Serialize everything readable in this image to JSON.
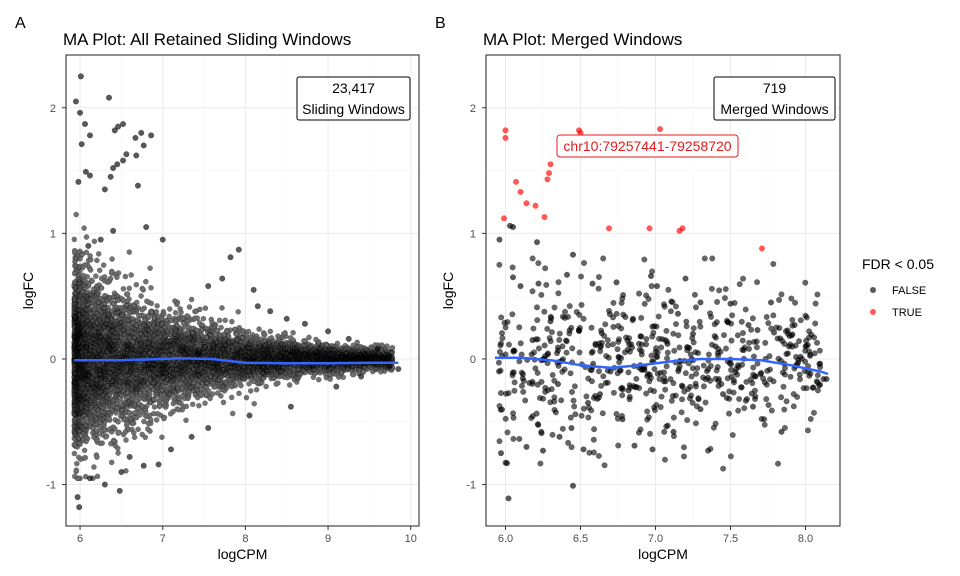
{
  "panel_a": {
    "tag": "A",
    "title": "MA Plot: All Retained Sliding Windows",
    "count_value": "23,417",
    "count_label": "Sliding Windows"
  },
  "panel_b": {
    "tag": "B",
    "title": "MA Plot: Merged Windows",
    "count_value": "719",
    "count_label": "Merged Windows",
    "highlight_label": "chr10:79257441-79258720"
  },
  "legend": {
    "title": "FDR < 0.05",
    "items": [
      "FALSE",
      "TRUE"
    ]
  },
  "colors": {
    "false_point": "#000000",
    "true_point": "#ff0000",
    "loess_line": "#3366ff",
    "highlight_text": "#e41a1c"
  },
  "chart_data": [
    {
      "type": "scatter",
      "title": "MA Plot: All Retained Sliding Windows",
      "xlabel": "logCPM",
      "ylabel": "logFC",
      "xlim": [
        5.83,
        10.1
      ],
      "ylim": [
        -1.33,
        2.42
      ],
      "xticks": [
        6,
        7,
        8,
        9,
        10
      ],
      "yticks": [
        -1,
        0,
        1,
        2
      ],
      "grid": true,
      "n_points": 23417,
      "series": [
        {
          "name": "FALSE",
          "points": [
            [
              5.95,
              2.05
            ],
            [
              6.01,
              2.25
            ],
            [
              6.0,
              1.96
            ],
            [
              6.35,
              2.08
            ],
            [
              6.06,
              1.87
            ],
            [
              6.12,
              1.78
            ],
            [
              6.02,
              1.71
            ],
            [
              6.52,
              1.87
            ],
            [
              6.46,
              1.85
            ],
            [
              6.42,
              1.82
            ],
            [
              6.74,
              1.8
            ],
            [
              6.86,
              1.78
            ],
            [
              6.67,
              1.76
            ],
            [
              6.77,
              1.7
            ],
            [
              6.68,
              1.62
            ],
            [
              6.56,
              1.63
            ],
            [
              6.52,
              1.58
            ],
            [
              6.07,
              1.49
            ],
            [
              6.12,
              1.46
            ],
            [
              6.4,
              1.52
            ],
            [
              6.45,
              1.55
            ],
            [
              6.37,
              1.45
            ],
            [
              5.98,
              1.41
            ],
            [
              6.3,
              1.35
            ],
            [
              6.7,
              1.38
            ],
            [
              5.97,
              -1.1
            ],
            [
              5.99,
              -1.18
            ],
            [
              6.12,
              -0.95
            ],
            [
              6.3,
              -1.0
            ],
            [
              6.48,
              -1.05
            ],
            [
              6.5,
              -0.9
            ],
            [
              6.77,
              -0.85
            ],
            [
              6.95,
              -0.84
            ],
            [
              6.6,
              -0.78
            ],
            [
              7.35,
              -0.62
            ],
            [
              7.55,
              0.58
            ],
            [
              7.72,
              0.64
            ],
            [
              7.82,
              0.81
            ],
            [
              7.92,
              0.87
            ],
            [
              8.15,
              0.42
            ],
            [
              8.3,
              0.38
            ],
            [
              8.5,
              0.32
            ],
            [
              8.55,
              -0.38
            ],
            [
              8.72,
              0.28
            ],
            [
              9.0,
              0.22
            ],
            [
              9.1,
              -0.22
            ],
            [
              9.25,
              0.16
            ],
            [
              9.4,
              -0.14
            ],
            [
              9.6,
              0.08
            ],
            [
              9.74,
              -0.06
            ],
            [
              9.85,
              -0.08
            ],
            [
              6.1,
              0.9
            ],
            [
              6.25,
              0.95
            ],
            [
              6.4,
              1.02
            ],
            [
              6.8,
              1.05
            ],
            [
              7.0,
              0.95
            ],
            [
              7.1,
              -0.72
            ],
            [
              7.55,
              -0.55
            ],
            [
              8.05,
              -0.45
            ],
            [
              8.1,
              0.55
            ]
          ]
        }
      ],
      "loess": {
        "name": "loess fit",
        "x": [
          5.93,
          6.5,
          7.0,
          7.2,
          7.6,
          8.0,
          8.5,
          9.0,
          9.5,
          9.85
        ],
        "y": [
          -0.01,
          -0.01,
          0.0,
          0.005,
          0.0,
          -0.03,
          -0.035,
          -0.035,
          -0.03,
          -0.03
        ]
      },
      "annotation": {
        "text": [
          "23,417",
          "Sliding Windows"
        ],
        "position": "top-right"
      }
    },
    {
      "type": "scatter",
      "title": "MA Plot: Merged Windows",
      "xlabel": "logCPM",
      "ylabel": "logFC",
      "xlim": [
        5.87,
        8.23
      ],
      "ylim": [
        -1.33,
        2.42
      ],
      "xticks": [
        6.0,
        6.5,
        7.0,
        7.5,
        8.0
      ],
      "yticks": [
        -1,
        0,
        1,
        2
      ],
      "grid": true,
      "n_points": 719,
      "series": [
        {
          "name": "TRUE",
          "points": [
            [
              6.0,
              1.82
            ],
            [
              6.0,
              1.76
            ],
            [
              6.49,
              1.82
            ],
            [
              6.5,
              1.8
            ],
            [
              7.03,
              1.83
            ],
            [
              6.07,
              1.41
            ],
            [
              6.1,
              1.33
            ],
            [
              6.14,
              1.24
            ],
            [
              6.2,
              1.22
            ],
            [
              6.28,
              1.43
            ],
            [
              6.29,
              1.48
            ],
            [
              6.3,
              1.55
            ],
            [
              6.26,
              1.13
            ],
            [
              5.99,
              1.12
            ],
            [
              6.69,
              1.04
            ],
            [
              6.96,
              1.04
            ],
            [
              7.16,
              1.02
            ],
            [
              7.18,
              1.04
            ],
            [
              7.71,
              0.88
            ]
          ]
        },
        {
          "name": "FALSE",
          "points": [
            [
              5.96,
              0.95
            ],
            [
              6.03,
              1.06
            ],
            [
              6.05,
              1.05
            ],
            [
              6.21,
              0.93
            ],
            [
              6.45,
              0.83
            ],
            [
              6.05,
              0.65
            ],
            [
              6.1,
              0.58
            ],
            [
              6.22,
              0.6
            ],
            [
              6.41,
              0.67
            ],
            [
              6.58,
              0.6
            ],
            [
              6.74,
              0.61
            ],
            [
              6.97,
              0.66
            ],
            [
              7.01,
              0.58
            ],
            [
              7.2,
              0.64
            ],
            [
              7.77,
              0.45
            ],
            [
              7.3,
              0.45
            ],
            [
              7.5,
              0.44
            ],
            [
              7.15,
              0.36
            ],
            [
              6.85,
              0.32
            ],
            [
              7.62,
              0.27
            ],
            [
              7.68,
              0.23
            ],
            [
              7.79,
              0.21
            ],
            [
              7.89,
              0.1
            ],
            [
              7.95,
              -0.03
            ],
            [
              8.12,
              -0.16
            ],
            [
              8.14,
              -0.16
            ],
            [
              7.84,
              -0.58
            ],
            [
              7.65,
              -0.38
            ],
            [
              7.45,
              -0.28
            ],
            [
              7.3,
              -0.4
            ],
            [
              7.12,
              -0.58
            ],
            [
              6.98,
              -0.72
            ],
            [
              6.86,
              -0.69
            ],
            [
              6.78,
              -0.48
            ],
            [
              6.63,
              -0.28
            ],
            [
              6.55,
              -0.35
            ],
            [
              6.44,
              -0.55
            ],
            [
              6.36,
              -0.62
            ],
            [
              6.25,
              -0.73
            ],
            [
              6.14,
              -0.7
            ],
            [
              6.01,
              -0.83
            ],
            [
              5.97,
              -0.75
            ],
            [
              6.02,
              -1.11
            ],
            [
              6.45,
              -1.01
            ],
            [
              6.52,
              -0.72
            ],
            [
              6.82,
              -0.25
            ],
            [
              6.95,
              -0.12
            ],
            [
              7.08,
              0.12
            ],
            [
              7.25,
              0.2
            ],
            [
              7.4,
              0.1
            ],
            [
              7.55,
              -0.05
            ],
            [
              7.7,
              -0.12
            ],
            [
              6.3,
              0.3
            ],
            [
              6.18,
              0.15
            ],
            [
              6.35,
              -0.2
            ],
            [
              6.6,
              0.12
            ],
            [
              6.7,
              -0.1
            ],
            [
              6.9,
              0.18
            ],
            [
              7.18,
              -0.22
            ],
            [
              7.35,
              -0.15
            ]
          ]
        }
      ],
      "loess": {
        "name": "loess fit",
        "x": [
          5.93,
          6.1,
          6.3,
          6.5,
          6.7,
          6.9,
          7.1,
          7.3,
          7.5,
          7.7,
          7.9,
          8.1,
          8.15
        ],
        "y": [
          0.01,
          0.01,
          -0.01,
          -0.05,
          -0.07,
          -0.05,
          -0.02,
          0.0,
          0.0,
          -0.01,
          -0.05,
          -0.1,
          -0.12
        ]
      },
      "annotation": {
        "text": [
          "719",
          "Merged Windows"
        ],
        "position": "top-right"
      },
      "highlight": {
        "label": "chr10:79257441-79258720"
      }
    }
  ]
}
